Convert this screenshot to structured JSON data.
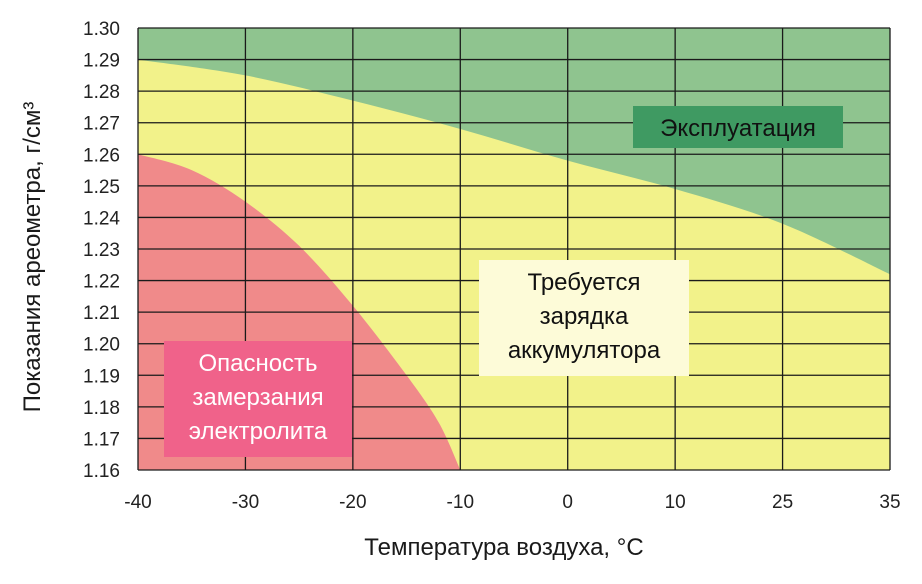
{
  "chart_data": {
    "type": "area",
    "xlabel": "Температура воздуха, °С",
    "ylabel": "Показания ареометра, г/см³",
    "x_ticks": [
      "-40",
      "-30",
      "-20",
      "-10",
      "0",
      "10",
      "25",
      "35"
    ],
    "y_ticks": [
      "1.16",
      "1.17",
      "1.18",
      "1.19",
      "1.20",
      "1.21",
      "1.22",
      "1.23",
      "1.24",
      "1.25",
      "1.26",
      "1.27",
      "1.28",
      "1.29",
      "1.30"
    ],
    "ylim": [
      1.16,
      1.3
    ],
    "grid": true,
    "regions": [
      {
        "name": "Эксплуатация",
        "color": "#8fc48f",
        "boundary": [
          {
            "x": -40,
            "y": 1.29
          },
          {
            "x": -30,
            "y": 1.285
          },
          {
            "x": -20,
            "y": 1.277
          },
          {
            "x": -10,
            "y": 1.268
          },
          {
            "x": 0,
            "y": 1.258
          },
          {
            "x": 10,
            "y": 1.249
          },
          {
            "x": 25,
            "y": 1.238
          },
          {
            "x": 35,
            "y": 1.222
          }
        ]
      },
      {
        "name": "Требуется зарядка аккумулятора",
        "color": "#f2f28a"
      },
      {
        "name": "Опасность замерзания электролита",
        "color": "#f08a8a",
        "boundary": [
          {
            "x": -40,
            "y": 1.26
          },
          {
            "x": -35,
            "y": 1.255
          },
          {
            "x": -30,
            "y": 1.245
          },
          {
            "x": -25,
            "y": 1.231
          },
          {
            "x": -20,
            "y": 1.212
          },
          {
            "x": -15,
            "y": 1.19
          },
          {
            "x": -12,
            "y": 1.175
          },
          {
            "x": -10,
            "y": 1.16
          }
        ]
      }
    ],
    "labels": {
      "operation": "Эксплуатация",
      "charge": [
        "Требуется",
        "зарядка",
        "аккумулятора"
      ],
      "freeze": [
        "Опасность",
        "замерзания",
        "электролита"
      ]
    }
  },
  "colors": {
    "green_zone": "#8fc48f",
    "yellow_zone": "#f2f28a",
    "red_zone": "#f08a8a",
    "operation_label_bg": "#3f9a62",
    "charge_label_bg": "#fdfbd8",
    "freeze_label_bg": "#f0628a",
    "grid": "#1a1a1a"
  }
}
